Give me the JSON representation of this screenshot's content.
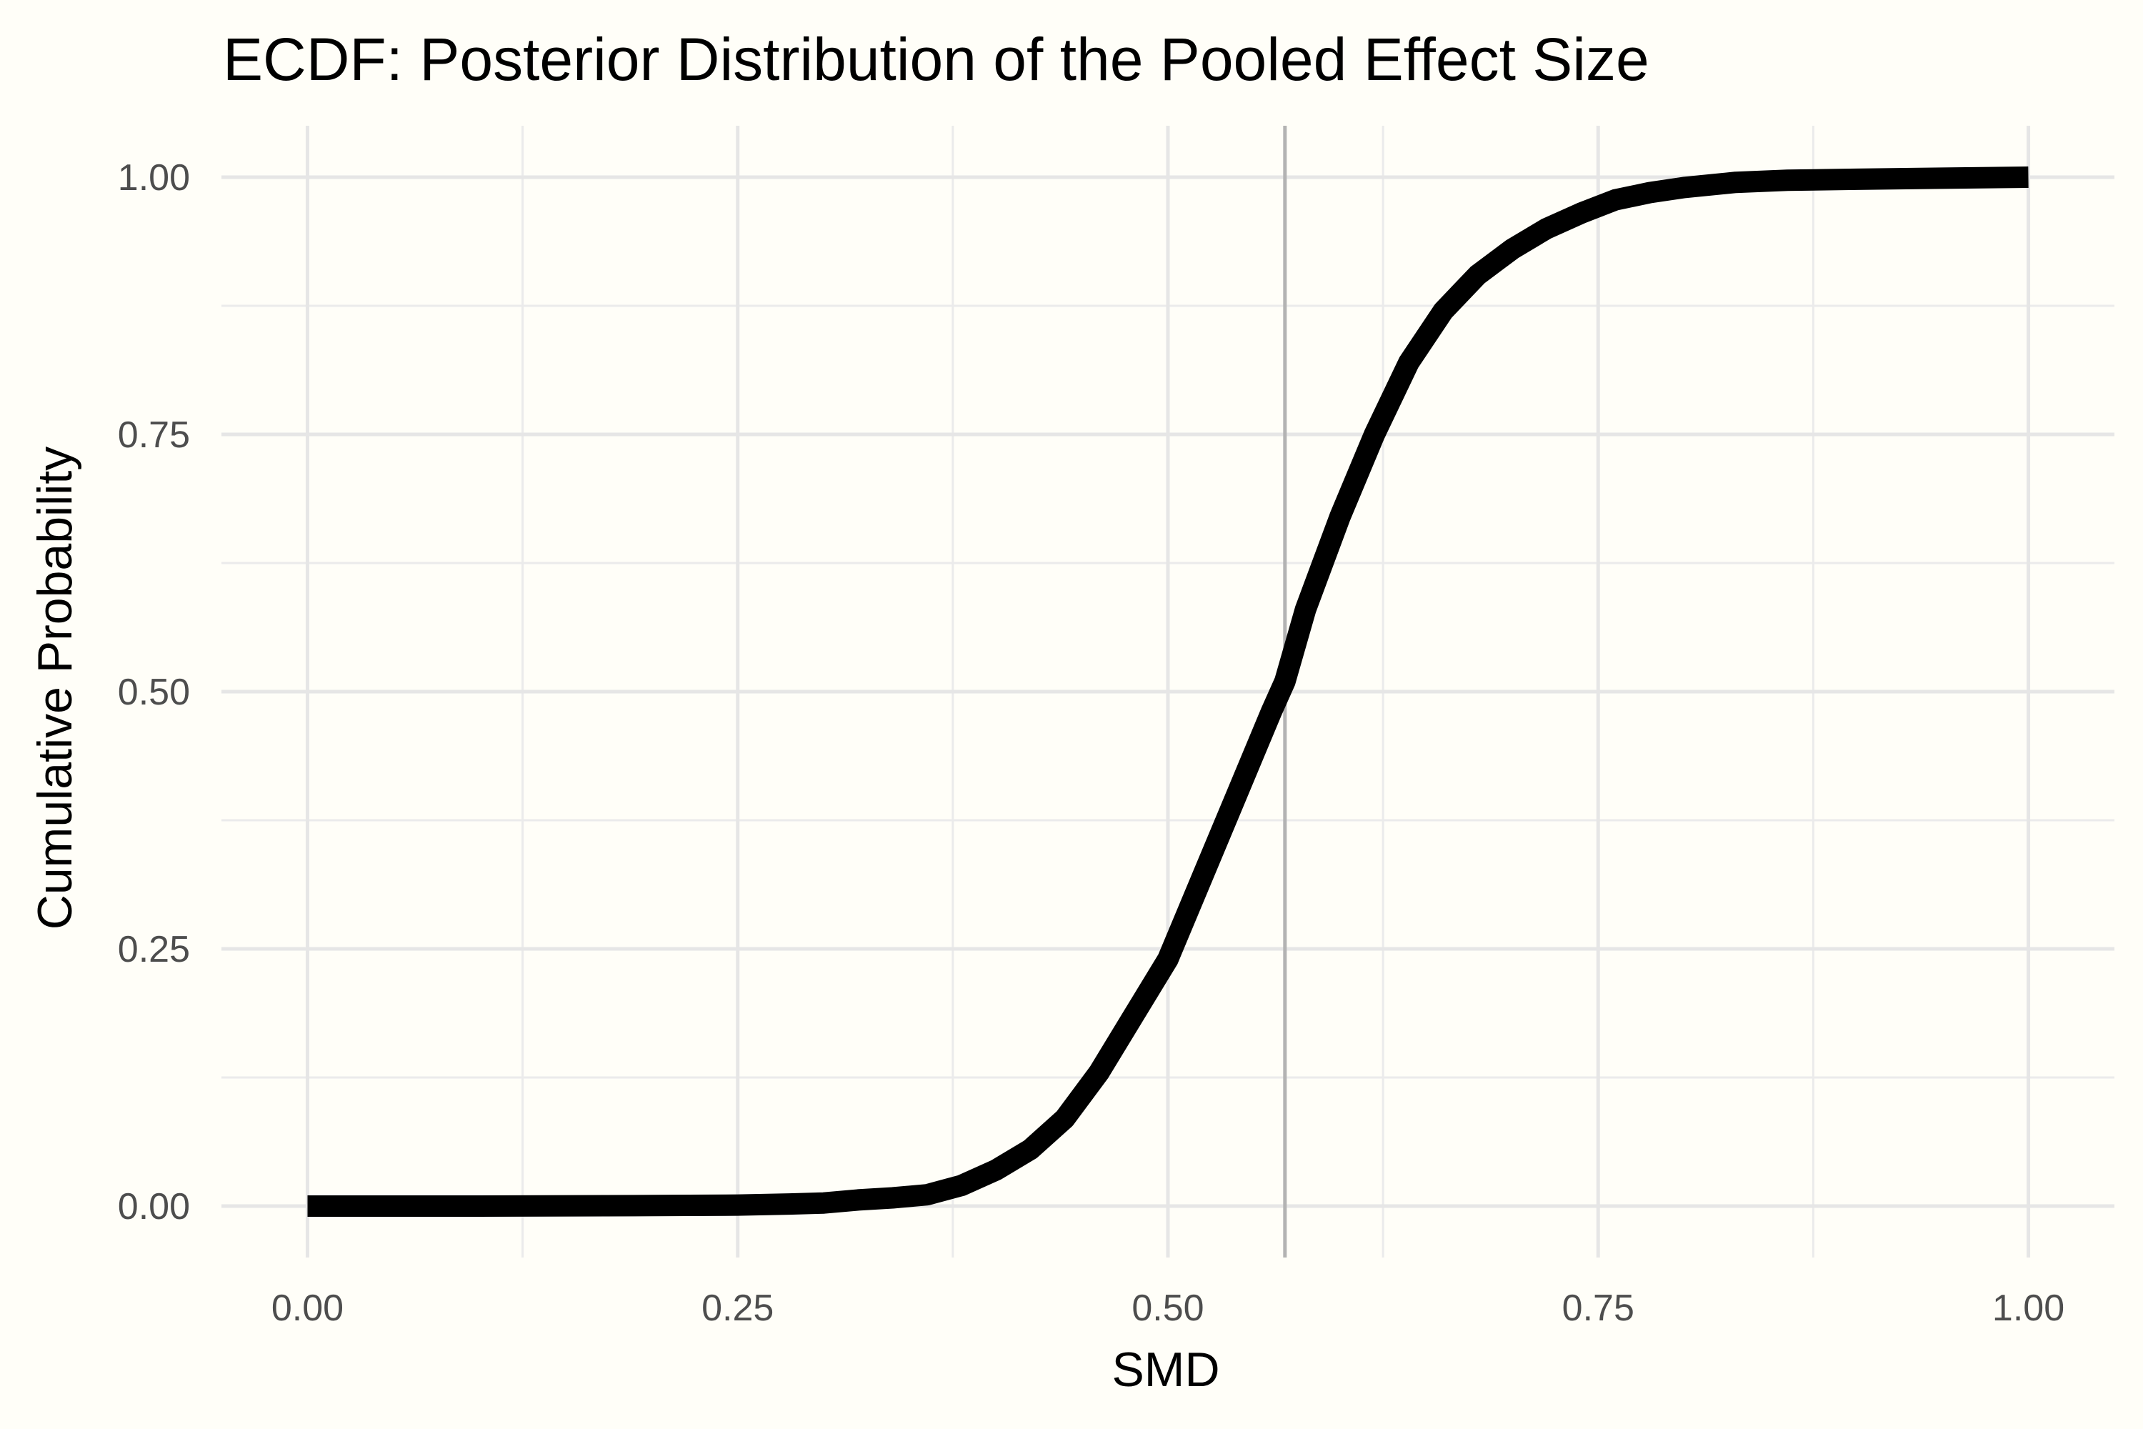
{
  "chart_data": {
    "type": "line",
    "title": "ECDF: Posterior Distribution of the Pooled Effect Size",
    "xlabel": "SMD",
    "ylabel": "Cumulative Probability",
    "xlim": [
      -0.05,
      1.05
    ],
    "ylim": [
      -0.05,
      1.05
    ],
    "x_ticks": [
      0.0,
      0.25,
      0.5,
      0.75,
      1.0
    ],
    "x_tick_labels": [
      "0.00",
      "0.25",
      "0.50",
      "0.75",
      "1.00"
    ],
    "y_ticks": [
      0.0,
      0.25,
      0.5,
      0.75,
      1.0
    ],
    "y_tick_labels": [
      "0.00",
      "0.25",
      "0.50",
      "0.75",
      "1.00"
    ],
    "grid": true,
    "reference_line": {
      "orientation": "vertical",
      "x": 0.568,
      "color": "#b3b3b3"
    },
    "series": [
      {
        "color": "#000000",
        "x": [
          0.0,
          0.1,
          0.2,
          0.25,
          0.28,
          0.3,
          0.32,
          0.34,
          0.36,
          0.38,
          0.4,
          0.42,
          0.44,
          0.46,
          0.48,
          0.5,
          0.52,
          0.54,
          0.56,
          0.568,
          0.58,
          0.6,
          0.62,
          0.64,
          0.66,
          0.68,
          0.7,
          0.72,
          0.74,
          0.76,
          0.78,
          0.8,
          0.83,
          0.86,
          0.9,
          0.95,
          1.0
        ],
        "y": [
          0.0,
          0.0,
          0.0005,
          0.001,
          0.002,
          0.003,
          0.006,
          0.008,
          0.011,
          0.02,
          0.035,
          0.055,
          0.085,
          0.13,
          0.185,
          0.24,
          0.32,
          0.4,
          0.48,
          0.51,
          0.58,
          0.67,
          0.75,
          0.82,
          0.87,
          0.905,
          0.93,
          0.95,
          0.965,
          0.978,
          0.985,
          0.99,
          0.995,
          0.997,
          0.998,
          0.999,
          1.0
        ]
      }
    ]
  }
}
